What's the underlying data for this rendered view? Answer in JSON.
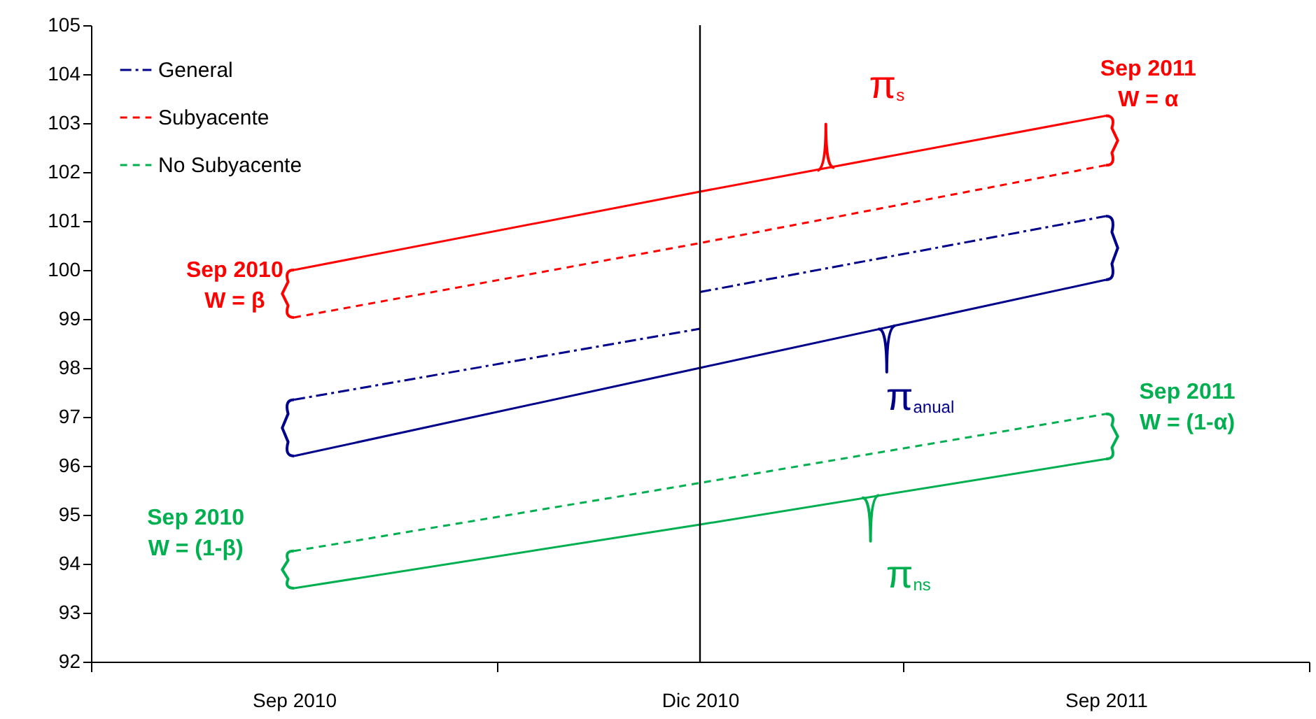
{
  "chart_data": {
    "type": "line",
    "categories": [
      "Sep 2010",
      "Dic 2010",
      "Sep 2011"
    ],
    "ylim": [
      92,
      105
    ],
    "yticks": [
      92,
      93,
      94,
      95,
      96,
      97,
      98,
      99,
      100,
      101,
      102,
      103,
      104,
      105
    ],
    "legend": "top left",
    "series": [
      {
        "name": "General",
        "color": "#00008b",
        "line_style": "dashdot",
        "values": [
          97.35,
          98.8,
          null
        ]
      },
      {
        "color": "#00008b",
        "line_style": "dashdot",
        "values": [
          null,
          99.55,
          101.1
        ]
      },
      {
        "name": "Subyacente",
        "color": "#ff0000",
        "line_style": "dashed",
        "values": [
          99.03,
          100.55,
          102.14
        ]
      },
      {
        "name": "No Subyacente",
        "color": "#00b050",
        "line_style": "dashed",
        "values": [
          94.26,
          95.65,
          97.06
        ]
      },
      {
        "color": "#ff0000",
        "line_style": "solid",
        "values": [
          100.0,
          101.6,
          103.15
        ]
      },
      {
        "color": "#00008b",
        "line_style": "solid",
        "values": [
          96.2,
          98.0,
          99.8
        ]
      },
      {
        "color": "#00b050",
        "line_style": "solid",
        "values": [
          93.5,
          94.8,
          96.14
        ]
      }
    ],
    "ref_lines": [
      {
        "axis": "x",
        "value": "Dic 2010",
        "color": "#000000"
      }
    ],
    "annotations": [
      "Sep 2011\nW = α",
      "π$_{s}$",
      "Sep 2010\nW = β",
      "π$_{anual}$",
      "Sep 2011\nW = (1-α)",
      "Sep 2010\nW = (1-β)",
      "π$_{ns}$"
    ]
  }
}
